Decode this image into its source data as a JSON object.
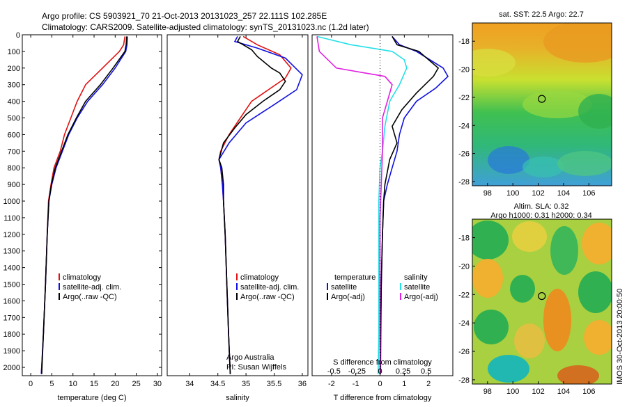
{
  "header": {
    "line1": "Argo profile: CS 5903921_70 21-Oct-2013 20131023_257 22.111S 102.285E",
    "line2": "Climatology: CARS2009. Satellite-adjusted climatology: synTS_20131023.nc (1.2d later)"
  },
  "side_stamp": "IMOS 30-Oct-2013 20:00:50",
  "colors": {
    "red": "#e01010",
    "blue": "#1010e0",
    "black": "#000000",
    "cyan": "#22e0e8",
    "magenta": "#e020e0"
  },
  "chart_data": [
    {
      "type": "line",
      "xlabel": "temperature (deg C)",
      "xlim": [
        -2,
        31
      ],
      "ylim": [
        0,
        2050
      ],
      "xticks": [
        0,
        5,
        10,
        15,
        20,
        25,
        30
      ],
      "yticks": [
        0,
        100,
        200,
        300,
        400,
        500,
        600,
        700,
        800,
        900,
        1000,
        1100,
        1200,
        1300,
        1400,
        1500,
        1600,
        1700,
        1800,
        1900,
        2000
      ],
      "legend": [
        "climatology",
        "satellite-adj. clim.",
        "Argo(..raw -QC)"
      ],
      "series": [
        {
          "name": "climatology",
          "color": "red",
          "points": [
            [
              22.3,
              10
            ],
            [
              22,
              60
            ],
            [
              21,
              100
            ],
            [
              17,
              200
            ],
            [
              13,
              300
            ],
            [
              11,
              400
            ],
            [
              9.5,
              500
            ],
            [
              8,
              600
            ],
            [
              7,
              700
            ],
            [
              5.5,
              800
            ],
            [
              4.8,
              900
            ],
            [
              4.2,
              1000
            ],
            [
              3.9,
              1200
            ],
            [
              3.5,
              1500
            ],
            [
              3,
              1800
            ],
            [
              2.5,
              2040
            ]
          ]
        },
        {
          "name": "satellite-adj. clim.",
          "color": "blue",
          "points": [
            [
              22.9,
              10
            ],
            [
              22.8,
              60
            ],
            [
              22.5,
              100
            ],
            [
              20,
              200
            ],
            [
              17,
              300
            ],
            [
              13.5,
              400
            ],
            [
              11,
              500
            ],
            [
              9,
              600
            ],
            [
              7.5,
              700
            ],
            [
              6,
              800
            ],
            [
              5,
              900
            ],
            [
              4.3,
              1000
            ],
            [
              3.9,
              1200
            ],
            [
              3.5,
              1500
            ],
            [
              3,
              1800
            ],
            [
              2.5,
              2040
            ]
          ]
        },
        {
          "name": "Argo(..raw -QC)",
          "color": "black",
          "points": [
            [
              22.7,
              10
            ],
            [
              22.6,
              60
            ],
            [
              22.3,
              100
            ],
            [
              19.5,
              200
            ],
            [
              16.5,
              300
            ],
            [
              13,
              400
            ],
            [
              10.8,
              500
            ],
            [
              8.8,
              600
            ],
            [
              7.3,
              700
            ],
            [
              5.8,
              800
            ],
            [
              4.9,
              900
            ],
            [
              4.3,
              1000
            ],
            [
              3.9,
              1200
            ],
            [
              3.5,
              1500
            ],
            [
              3,
              1800
            ],
            [
              2.6,
              2040
            ]
          ]
        }
      ]
    },
    {
      "type": "line",
      "xlabel": "salinity",
      "xlim": [
        33.6,
        36.1
      ],
      "ylim": [
        0,
        2050
      ],
      "xticks": [
        34,
        34.5,
        35,
        35.5,
        36
      ],
      "legend": [
        "climatology",
        "satellite-adj. clim.",
        "Argo(..raw -QC)"
      ],
      "annotation": [
        "Argo Australia",
        "PI: Susan Wijffels"
      ],
      "series": [
        {
          "name": "climatology",
          "color": "red",
          "points": [
            [
              34.95,
              10
            ],
            [
              35.2,
              60
            ],
            [
              35.6,
              120
            ],
            [
              35.8,
              200
            ],
            [
              35.7,
              260
            ],
            [
              35.4,
              330
            ],
            [
              35.1,
              400
            ],
            [
              34.9,
              500
            ],
            [
              34.7,
              600
            ],
            [
              34.55,
              700
            ],
            [
              34.52,
              750
            ],
            [
              34.55,
              800
            ],
            [
              34.58,
              900
            ],
            [
              34.6,
              1000
            ],
            [
              34.63,
              1200
            ],
            [
              34.66,
              1500
            ],
            [
              34.69,
              1800
            ],
            [
              34.72,
              2040
            ]
          ]
        },
        {
          "name": "satellite-adj. clim.",
          "color": "blue",
          "points": [
            [
              34.85,
              10
            ],
            [
              34.8,
              40
            ],
            [
              35.2,
              80
            ],
            [
              35.7,
              140
            ],
            [
              36,
              240
            ],
            [
              35.9,
              330
            ],
            [
              35.5,
              420
            ],
            [
              35.0,
              530
            ],
            [
              34.7,
              650
            ],
            [
              34.52,
              750
            ],
            [
              34.55,
              800
            ],
            [
              34.58,
              900
            ],
            [
              34.6,
              1000
            ],
            [
              34.63,
              1200
            ],
            [
              34.66,
              1500
            ],
            [
              34.69,
              1800
            ],
            [
              34.72,
              2040
            ]
          ]
        },
        {
          "name": "Argo(..raw -QC)",
          "color": "black",
          "points": [
            [
              34.9,
              10
            ],
            [
              34.85,
              40
            ],
            [
              35.1,
              90
            ],
            [
              35.2,
              130
            ],
            [
              35.45,
              200
            ],
            [
              35.6,
              230
            ],
            [
              35.7,
              280
            ],
            [
              35.6,
              330
            ],
            [
              35.3,
              400
            ],
            [
              35.0,
              480
            ],
            [
              34.8,
              560
            ],
            [
              34.6,
              650
            ],
            [
              34.52,
              750
            ],
            [
              34.57,
              800
            ],
            [
              34.6,
              900
            ],
            [
              34.6,
              1000
            ],
            [
              34.63,
              1200
            ],
            [
              34.66,
              1500
            ],
            [
              34.69,
              1800
            ],
            [
              34.72,
              2040
            ]
          ]
        }
      ]
    },
    {
      "type": "line",
      "xlabel": "T difference from climatology",
      "xlabel_top": "S difference from climatology",
      "xlim": [
        -2.8,
        3.0
      ],
      "ylim": [
        0,
        2050
      ],
      "xticks": [
        -2,
        -1,
        0,
        1,
        2
      ],
      "xticks_top": [
        {
          "label": "-0.5",
          "x": -1.9
        },
        {
          "label": "-0.25",
          "x": -0.95
        },
        {
          "label": "0",
          "x": 0
        },
        {
          "label": "0.25",
          "x": 0.95
        },
        {
          "label": "0.5",
          "x": 1.9
        }
      ],
      "legend_left_title": "temperature",
      "legend_right_title": "salinity",
      "legend_left": [
        "satellite",
        "Argo(-adj)"
      ],
      "legend_right": [
        "satellite",
        "Argo(-adj)"
      ],
      "series": [
        {
          "name": "T satellite",
          "color": "blue",
          "points": [
            [
              0.5,
              10
            ],
            [
              0.8,
              60
            ],
            [
              1.5,
              100
            ],
            [
              2.6,
              200
            ],
            [
              2.8,
              250
            ],
            [
              2.3,
              320
            ],
            [
              1.5,
              400
            ],
            [
              1.0,
              500
            ],
            [
              0.8,
              600
            ],
            [
              0.7,
              700
            ],
            [
              0.5,
              800
            ],
            [
              0.3,
              900
            ],
            [
              0.15,
              1000
            ],
            [
              0.1,
              1200
            ],
            [
              0.05,
              1500
            ],
            [
              0.02,
              1800
            ],
            [
              0,
              2040
            ]
          ]
        },
        {
          "name": "T Argo(-adj)",
          "color": "black",
          "points": [
            [
              0.5,
              10
            ],
            [
              0.7,
              60
            ],
            [
              1.6,
              100
            ],
            [
              2.4,
              200
            ],
            [
              2.2,
              250
            ],
            [
              1.5,
              350
            ],
            [
              0.9,
              450
            ],
            [
              0.5,
              550
            ],
            [
              0.7,
              650
            ],
            [
              0.4,
              750
            ],
            [
              0.2,
              900
            ],
            [
              0.15,
              1000
            ],
            [
              0.1,
              1200
            ],
            [
              0.05,
              1500
            ],
            [
              0.03,
              1800
            ],
            [
              0.02,
              2040
            ]
          ]
        },
        {
          "name": "S satellite",
          "color": "cyan",
          "points": [
            [
              -2.6,
              10
            ],
            [
              -1.2,
              60
            ],
            [
              0.5,
              100
            ],
            [
              1.0,
              150
            ],
            [
              1.1,
              200
            ],
            [
              0.8,
              300
            ],
            [
              0.4,
              400
            ],
            [
              0.2,
              550
            ],
            [
              0.1,
              700
            ],
            [
              0,
              800
            ],
            [
              -0.05,
              1000
            ],
            [
              -0.05,
              1200
            ],
            [
              -0.05,
              1500
            ],
            [
              -0.05,
              1800
            ],
            [
              -0.08,
              2040
            ]
          ]
        },
        {
          "name": "S Argo(-adj)",
          "color": "magenta",
          "points": [
            [
              -2.6,
              10
            ],
            [
              -2.5,
              100
            ],
            [
              -1.8,
              200
            ],
            [
              0.2,
              250
            ],
            [
              0.5,
              300
            ],
            [
              0.3,
              400
            ],
            [
              0.1,
              500
            ],
            [
              0.1,
              700
            ],
            [
              0.05,
              900
            ],
            [
              0,
              1100
            ],
            [
              0,
              1500
            ],
            [
              0,
              1800
            ],
            [
              0,
              2040
            ]
          ]
        }
      ]
    },
    {
      "type": "heatmap",
      "title": "sat. SST: 22.5 Argo: 22.7",
      "xlim": [
        96.8,
        107.8
      ],
      "ylim": [
        -28.3,
        -16.7
      ],
      "xticks": [
        98,
        100,
        102,
        104,
        106
      ],
      "yticks": [
        -18,
        -20,
        -22,
        -24,
        -26,
        -28
      ],
      "marker": [
        102.285,
        -22.111
      ]
    },
    {
      "type": "heatmap",
      "title": "Altim. SLA: 0.32",
      "subtitle": "Argo h1000: 0.31 h2000: 0.34",
      "xlim": [
        96.8,
        107.8
      ],
      "ylim": [
        -28.3,
        -16.7
      ],
      "xticks": [
        98,
        100,
        102,
        104,
        106
      ],
      "yticks": [
        -18,
        -20,
        -22,
        -24,
        -26,
        -28
      ],
      "marker": [
        102.285,
        -22.111
      ]
    }
  ]
}
